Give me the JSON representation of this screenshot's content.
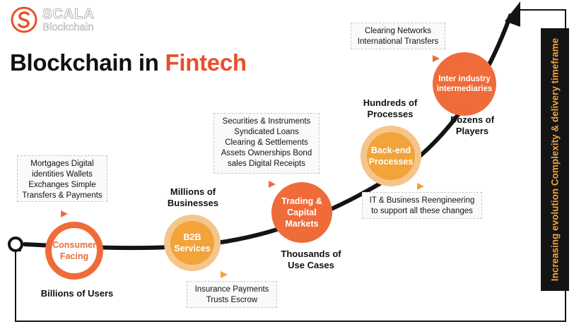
{
  "logo": {
    "name": "SCALA",
    "sub": "Blockchain",
    "mark_color": "#e8502a"
  },
  "title": {
    "prefix": "Blockchain in",
    "highlight": "Fintech",
    "highlight_color": "#e8502a"
  },
  "side_caption": "Increasing evolution Complexity & delivery timeframe",
  "stages": [
    {
      "id": "consumer",
      "label": "Consumer Facing",
      "caption": "Billions of Users",
      "note": "Mortgages Digital identities Wallets Exchanges Simple Transfers & Payments"
    },
    {
      "id": "b2b",
      "label": "B2B Services",
      "caption": "Millions of Businesses",
      "note": "Insurance Payments Trusts Escrow"
    },
    {
      "id": "trading",
      "label": "Trading & Capital Markets",
      "caption": "Thousands of Use Cases",
      "note": "Securities & Instruments Syndicated Loans Clearing & Settlements Assets Ownerships Bond sales Digital Receipts"
    },
    {
      "id": "backend",
      "label": "Back-end Processes",
      "caption": "Hundreds of Processes",
      "note": "IT & Business Reengineering to support all these changes"
    },
    {
      "id": "inter",
      "label": "Inter industry intermediaries",
      "caption": "Dozens of Players",
      "note": "Clearing Networks International Transfers"
    }
  ],
  "colors": {
    "orange": "#ef6b3a",
    "amber": "#f2a33a",
    "dark": "#141414"
  }
}
